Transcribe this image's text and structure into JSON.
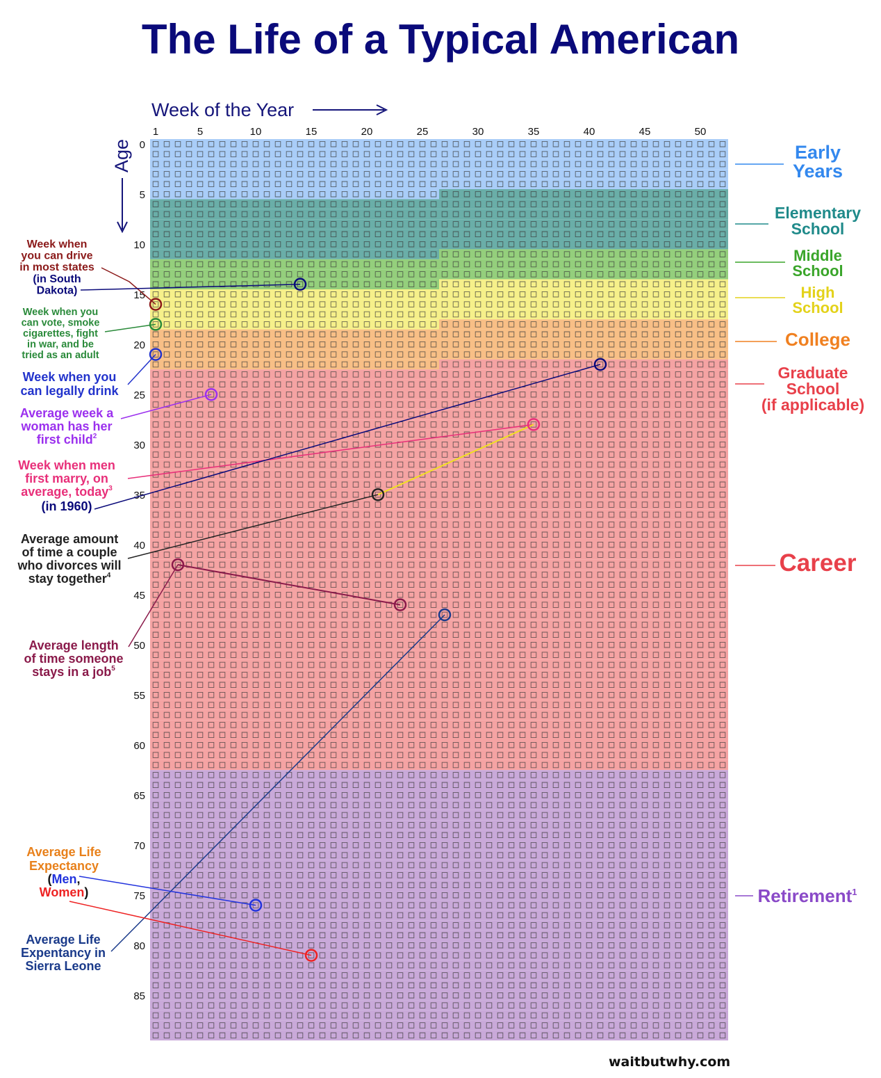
{
  "title": "The Life of a Typical American",
  "footer": "waitbutwhy.com",
  "chart_data": {
    "type": "heatmap",
    "title": "The Life of a Typical American",
    "xlabel": "Week of the Year",
    "ylabel": "Age",
    "x_ticks": [
      1,
      5,
      10,
      15,
      20,
      25,
      30,
      35,
      40,
      45,
      50
    ],
    "y_ticks": [
      0,
      5,
      10,
      15,
      20,
      25,
      30,
      35,
      40,
      45,
      50,
      55,
      60,
      65,
      70,
      75,
      80,
      85
    ],
    "weeks": 52,
    "years": 90,
    "grid": true,
    "stages": [
      {
        "name": "Early Years",
        "label_lines": [
          "Early",
          "Years"
        ],
        "start_age": 0,
        "start_week": 1,
        "color": "#3388ee",
        "fill": "#a9cdf8"
      },
      {
        "name": "Elementary School",
        "label_lines": [
          "Elementary",
          "School"
        ],
        "start_age": 5,
        "start_week": 27,
        "color": "#1f8a8a",
        "fill": "#6aaea8"
      },
      {
        "name": "Middle School",
        "label_lines": [
          "Middle",
          "School"
        ],
        "start_age": 11,
        "start_week": 27,
        "color": "#3aa52a",
        "fill": "#94cf7c"
      },
      {
        "name": "High School",
        "label_lines": [
          "High",
          "School"
        ],
        "start_age": 14,
        "start_week": 27,
        "color": "#e3d21a",
        "fill": "#f6f08a"
      },
      {
        "name": "College",
        "label_lines": [
          "College"
        ],
        "start_age": 18,
        "start_week": 27,
        "color": "#f08020",
        "fill": "#f8bf86"
      },
      {
        "name": "Graduate School (if applicable)",
        "label_lines": [
          "Graduate",
          "School",
          "(if applicable)"
        ],
        "start_age": 22,
        "start_week": 27,
        "color": "#e8404a",
        "fill": "#f5a3a3"
      },
      {
        "name": "Career",
        "label_lines": [
          "Career"
        ],
        "start_age": 22,
        "start_week": 27,
        "color": "#e8404a",
        "fill": "#f5a3a3"
      },
      {
        "name": "Retirement",
        "label_lines": [
          "Retirement"
        ],
        "sup": "1",
        "start_age": 63,
        "start_week": 1,
        "color": "#8a4ac8",
        "fill": "#c9a9d9"
      }
    ],
    "markers": [
      {
        "name": "Week when you can drive in most states",
        "age": 16,
        "week": 1,
        "color": "#8b1a1a"
      },
      {
        "name": "Week when you can drive (in South Dakota)",
        "age": 14,
        "week": 14,
        "color": "#0a0a7a"
      },
      {
        "name": "Week when you can vote, smoke cigarettes, fight in war, and be tried as an adult",
        "age": 18,
        "week": 1,
        "color": "#2a8a3a"
      },
      {
        "name": "Week when you can legally drink",
        "age": 21,
        "week": 1,
        "color": "#2233cc"
      },
      {
        "name": "Average week a woman has her first child",
        "age": 25,
        "week": 6,
        "color": "#9b30ee"
      },
      {
        "name": "Week when men first marry, on average, today",
        "age": 28,
        "week": 35,
        "color": "#e8307a"
      },
      {
        "name": "Week when men first marry (in 1960)",
        "age": 22,
        "week": 41,
        "color": "#0a0a7a"
      },
      {
        "name": "Average amount of time a couple who divorces will stay together",
        "age": 35,
        "week": 21,
        "color": "#222222"
      },
      {
        "name": "Average length of time someone stays in a job (start)",
        "age": 42,
        "week": 3,
        "color": "#8a1a4a"
      },
      {
        "name": "Average length of time someone stays in a job (end)",
        "age": 46,
        "week": 23,
        "color": "#8a1a4a"
      },
      {
        "name": "Average Life Expectancy in Sierra Leone",
        "age": 47,
        "week": 27,
        "color": "#1a3a8a"
      },
      {
        "name": "Average Life Expectancy (Men)",
        "age": 76,
        "week": 10,
        "color": "#2233dd"
      },
      {
        "name": "Average Life Expectancy (Women)",
        "age": 81,
        "week": 15,
        "color": "#ee2222"
      }
    ]
  },
  "annotations": {
    "drive": {
      "lines": [
        "Week when",
        "you can drive",
        "in most states"
      ],
      "color": "#8b1a1a"
    },
    "drive_sd": {
      "lines": [
        "(in South",
        "Dakota)"
      ],
      "color": "#0a0a7a"
    },
    "vote": {
      "lines": [
        "Week when you",
        "can vote, smoke",
        "cigarettes, fight",
        "in war, and be",
        "tried as an adult"
      ],
      "color": "#2a8a3a"
    },
    "drink": {
      "lines": [
        "Week when you",
        "can legally drink"
      ],
      "color": "#2233cc"
    },
    "child": {
      "lines": [
        "Average week a",
        "woman has her",
        "first child"
      ],
      "sup": "2",
      "color": "#9b30ee"
    },
    "marry": {
      "lines": [
        "Week when men",
        "first marry, on",
        "average, today"
      ],
      "sup": "3",
      "color": "#e8307a"
    },
    "marry_1960": {
      "lines": [
        "(in 1960)"
      ],
      "color": "#0a0a7a"
    },
    "divorce": {
      "lines": [
        "Average amount",
        "of time a couple",
        "who divorces will",
        "stay together"
      ],
      "sup": "4",
      "color": "#222222"
    },
    "job": {
      "lines": [
        "Average length",
        "of time someone",
        "stays in a job"
      ],
      "sup": "5",
      "color": "#8a1a4a"
    },
    "life": {
      "line1": "Average Life",
      "line2": "Expectancy",
      "color": "#e8801a"
    },
    "life_men": {
      "text": "Men",
      "color": "#2233dd"
    },
    "life_women": {
      "text": "Women",
      "color": "#ee2222"
    },
    "sierra": {
      "lines": [
        "Average Life",
        "Expentancy in",
        "Sierra Leone"
      ],
      "color": "#1a3a8a"
    }
  }
}
